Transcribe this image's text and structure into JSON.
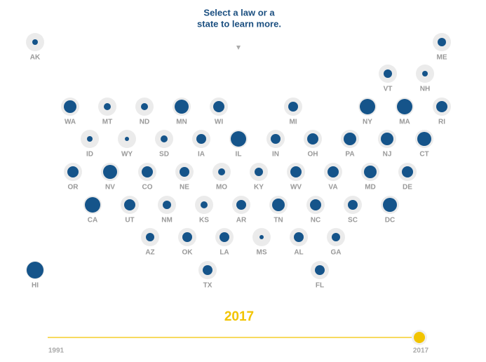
{
  "chart_data": {
    "type": "tilemap",
    "prompt": [
      "Select a law or a",
      "state to learn more."
    ],
    "color": "#15548a",
    "categories": [
      "AK",
      "ME",
      "VT",
      "NH",
      "WA",
      "MT",
      "ND",
      "MN",
      "WI",
      "MI",
      "NY",
      "MA",
      "RI",
      "ID",
      "WY",
      "SD",
      "IA",
      "IL",
      "IN",
      "OH",
      "PA",
      "NJ",
      "CT",
      "OR",
      "NV",
      "CO",
      "NE",
      "MO",
      "KY",
      "WV",
      "VA",
      "MD",
      "DE",
      "CA",
      "UT",
      "NM",
      "KS",
      "AR",
      "TN",
      "NC",
      "SC",
      "DC",
      "AZ",
      "OK",
      "LA",
      "MS",
      "AL",
      "GA",
      "HI",
      "TX",
      "FL"
    ],
    "values": [
      4,
      6,
      6,
      4,
      9,
      5,
      5,
      10,
      8,
      7,
      11,
      11,
      8,
      4,
      3,
      5,
      7,
      11,
      7,
      8,
      9,
      9,
      10,
      8,
      10,
      8,
      7,
      5,
      6,
      8,
      8,
      9,
      8,
      11,
      8,
      6,
      5,
      7,
      9,
      8,
      7,
      10,
      6,
      7,
      7,
      3,
      7,
      6,
      12,
      7,
      7
    ],
    "slider": {
      "min": 1991,
      "max": 2017,
      "value": 2017,
      "color": "#f2c400"
    }
  }
}
